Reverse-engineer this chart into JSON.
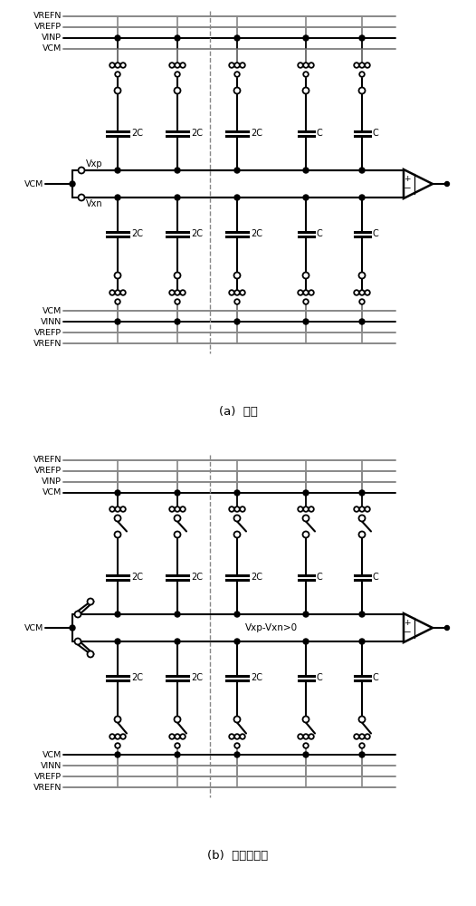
{
  "fig_width": 5.26,
  "fig_height": 10.0,
  "dpi": 100,
  "BLACK": "#000000",
  "GRAY": "#888888",
  "PINK": "#b090b0",
  "label_a": "(a)  采样",
  "label_b": "(b)  判断第一位",
  "cap_labels": [
    "2C",
    "2C",
    "2C",
    "C",
    "C"
  ],
  "top_rails_a": [
    {
      "label": "VREFN",
      "color": "GRAY"
    },
    {
      "label": "VREFP",
      "color": "GRAY"
    },
    {
      "label": "VINP",
      "color": "BLACK"
    },
    {
      "label": "VCM",
      "color": "GRAY"
    }
  ],
  "bot_rails_a": [
    {
      "label": "VCM",
      "color": "GRAY"
    },
    {
      "label": "VINN",
      "color": "BLACK"
    },
    {
      "label": "VREFP",
      "color": "GRAY"
    },
    {
      "label": "VREFN",
      "color": "GRAY"
    }
  ],
  "top_rails_b": [
    {
      "label": "VREFN",
      "color": "GRAY"
    },
    {
      "label": "VREFP",
      "color": "GRAY"
    },
    {
      "label": "VINP",
      "color": "GRAY"
    },
    {
      "label": "VCM",
      "color": "BLACK"
    }
  ],
  "bot_rails_b": [
    {
      "label": "VCM",
      "color": "BLACK"
    },
    {
      "label": "VINN",
      "color": "GRAY"
    },
    {
      "label": "VREFP",
      "color": "GRAY"
    },
    {
      "label": "VREFN",
      "color": "GRAY"
    }
  ]
}
